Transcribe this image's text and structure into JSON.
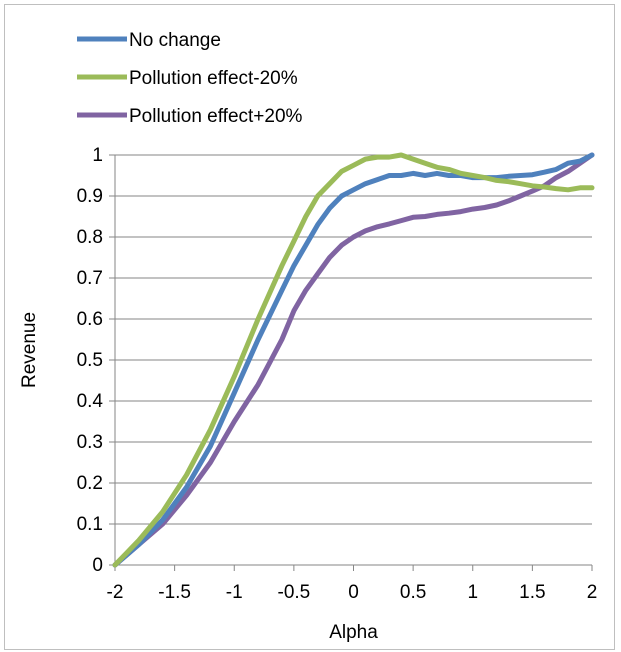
{
  "chart_data": {
    "type": "line",
    "title": "",
    "xlabel": "Alpha",
    "ylabel": "Revenue",
    "xlim": [
      -2,
      2
    ],
    "ylim": [
      0,
      1
    ],
    "xticks": [
      "-2",
      "-1.5",
      "-1",
      "-0.5",
      "0",
      "0.5",
      "1",
      "1.5",
      "2"
    ],
    "yticks": [
      "0",
      "0.1",
      "0.2",
      "0.3",
      "0.4",
      "0.5",
      "0.6",
      "0.7",
      "0.8",
      "0.9",
      "1"
    ],
    "grid": "horizontal",
    "legend": "top-left",
    "series": [
      {
        "name": "No change",
        "color": "#4f81bd",
        "x": [
          -2,
          -1.8,
          -1.6,
          -1.4,
          -1.2,
          -1.0,
          -0.8,
          -0.6,
          -0.5,
          -0.4,
          -0.3,
          -0.2,
          -0.1,
          0.0,
          0.1,
          0.2,
          0.3,
          0.4,
          0.5,
          0.6,
          0.7,
          0.8,
          0.9,
          1.0,
          1.1,
          1.2,
          1.3,
          1.4,
          1.5,
          1.6,
          1.7,
          1.8,
          1.9,
          2.0
        ],
        "y": [
          0.0,
          0.05,
          0.11,
          0.19,
          0.29,
          0.42,
          0.55,
          0.67,
          0.73,
          0.78,
          0.83,
          0.87,
          0.9,
          0.915,
          0.93,
          0.94,
          0.95,
          0.95,
          0.955,
          0.95,
          0.955,
          0.95,
          0.95,
          0.945,
          0.945,
          0.945,
          0.948,
          0.95,
          0.952,
          0.958,
          0.965,
          0.98,
          0.985,
          1.0
        ]
      },
      {
        "name": "Pollution effect-20%",
        "color": "#9bbb59",
        "x": [
          -2,
          -1.8,
          -1.6,
          -1.4,
          -1.2,
          -1.0,
          -0.8,
          -0.6,
          -0.5,
          -0.4,
          -0.3,
          -0.2,
          -0.1,
          0.0,
          0.1,
          0.2,
          0.3,
          0.4,
          0.5,
          0.6,
          0.7,
          0.8,
          0.9,
          1.0,
          1.1,
          1.2,
          1.3,
          1.4,
          1.5,
          1.6,
          1.7,
          1.8,
          1.9,
          2.0
        ],
        "y": [
          0.0,
          0.06,
          0.13,
          0.22,
          0.33,
          0.46,
          0.6,
          0.73,
          0.79,
          0.85,
          0.9,
          0.93,
          0.96,
          0.975,
          0.99,
          0.995,
          0.995,
          1.0,
          0.99,
          0.98,
          0.97,
          0.965,
          0.955,
          0.95,
          0.945,
          0.938,
          0.935,
          0.93,
          0.925,
          0.922,
          0.918,
          0.915,
          0.92,
          0.92
        ]
      },
      {
        "name": "Pollution effect+20%",
        "color": "#8064a2",
        "x": [
          -2,
          -1.8,
          -1.6,
          -1.4,
          -1.2,
          -1.0,
          -0.8,
          -0.6,
          -0.5,
          -0.4,
          -0.3,
          -0.2,
          -0.1,
          0.0,
          0.1,
          0.2,
          0.3,
          0.4,
          0.5,
          0.6,
          0.7,
          0.8,
          0.9,
          1.0,
          1.1,
          1.2,
          1.3,
          1.4,
          1.5,
          1.6,
          1.7,
          1.8,
          1.9,
          2.0
        ],
        "y": [
          0.0,
          0.05,
          0.1,
          0.17,
          0.25,
          0.35,
          0.44,
          0.55,
          0.62,
          0.67,
          0.71,
          0.75,
          0.78,
          0.8,
          0.815,
          0.825,
          0.832,
          0.84,
          0.848,
          0.85,
          0.855,
          0.858,
          0.862,
          0.868,
          0.872,
          0.878,
          0.888,
          0.9,
          0.912,
          0.925,
          0.945,
          0.96,
          0.98,
          1.0
        ]
      }
    ]
  }
}
